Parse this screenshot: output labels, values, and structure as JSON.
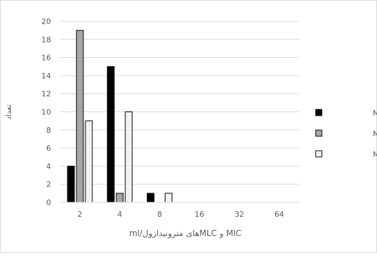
{
  "chart_data": {
    "type": "bar",
    "title": "",
    "xlabel": "MIC و MLCهای مترونیدازول/ml",
    "ylabel": "تعداد",
    "categories": [
      "2",
      "4",
      "8",
      "16",
      "32",
      "64"
    ],
    "ylim": [
      0,
      20
    ],
    "yticks": [
      0,
      2,
      4,
      6,
      8,
      10,
      12,
      14,
      16,
      18,
      20
    ],
    "grid": true,
    "legend_position": "right",
    "series": [
      {
        "name": "MIC هوازی",
        "values": [
          4,
          15,
          1,
          0,
          0,
          0
        ],
        "color": "#000000",
        "border": "#000000"
      },
      {
        "name": "MIC بی هوازی",
        "values": [
          19,
          1,
          0,
          0,
          0,
          0
        ],
        "color": "#a6a6a6",
        "border": "#000000"
      },
      {
        "name": "MLC هوازی",
        "values": [
          9,
          10,
          1,
          0,
          0,
          0
        ],
        "color": "#f2f2f2",
        "border": "#000000"
      }
    ]
  }
}
